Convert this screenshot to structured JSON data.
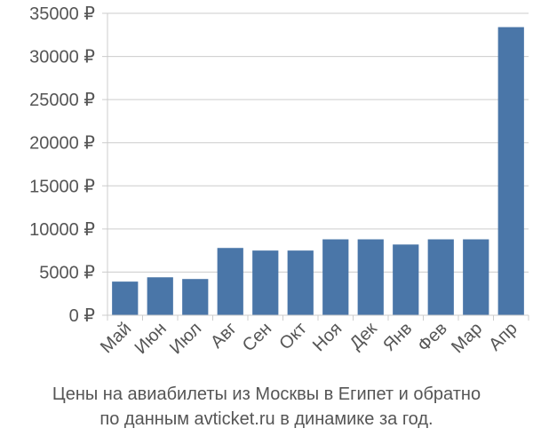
{
  "chart_data": {
    "type": "bar",
    "categories": [
      "Май",
      "Июн",
      "Июл",
      "Авг",
      "Сен",
      "Окт",
      "Ноя",
      "Дек",
      "Янв",
      "Фев",
      "Мар",
      "Апр"
    ],
    "values": [
      3900,
      4400,
      4200,
      7800,
      7500,
      7500,
      8800,
      8800,
      8200,
      8800,
      8800,
      33400
    ],
    "ylim": [
      0,
      35000
    ],
    "yticks": [
      0,
      5000,
      10000,
      15000,
      20000,
      25000,
      30000,
      35000
    ],
    "ytick_labels": [
      "0 ₽",
      "5000 ₽",
      "10000 ₽",
      "15000 ₽",
      "20000 ₽",
      "25000 ₽",
      "30000 ₽",
      "35000 ₽"
    ],
    "grid": "horizontal",
    "colors": {
      "bar": "#4a76a8",
      "grid": "#cccccc",
      "axis": "#555555",
      "text": "#555555"
    }
  },
  "caption": {
    "line1": "Цены на авиабилеты из Москвы в Египет и обратно",
    "line2": "по данным avticket.ru в динамике за год."
  }
}
